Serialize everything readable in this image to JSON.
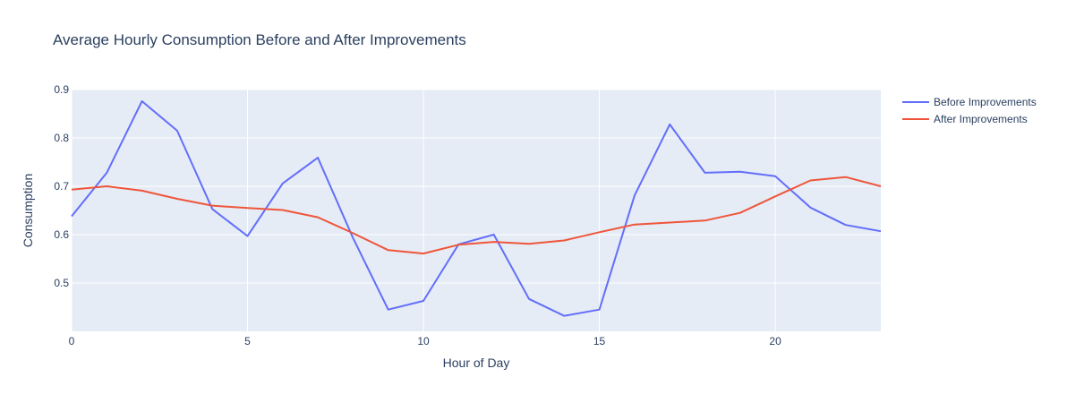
{
  "chart_data": {
    "type": "line",
    "title": "Average Hourly Consumption Before and After Improvements",
    "xlabel": "Hour of Day",
    "ylabel": "Consumption",
    "xlim": [
      0,
      23
    ],
    "ylim": [
      0.4,
      0.9
    ],
    "x_ticks": [
      0,
      5,
      10,
      15,
      20
    ],
    "x_tick_labels": [
      "0",
      "5",
      "10",
      "15",
      "20"
    ],
    "y_ticks": [
      0.5,
      0.6,
      0.7,
      0.8,
      0.9
    ],
    "y_tick_labels": [
      "0.5",
      "0.6",
      "0.7",
      "0.8",
      "0.9"
    ],
    "grid": true,
    "legend_position": "top-right",
    "x": [
      0,
      1,
      2,
      3,
      4,
      5,
      6,
      7,
      8,
      9,
      10,
      11,
      12,
      13,
      14,
      15,
      16,
      17,
      18,
      19,
      20,
      21,
      22,
      23
    ],
    "series": [
      {
        "name": "Before Improvements",
        "color": "#636efa",
        "values": [
          0.638,
          0.728,
          0.876,
          0.815,
          0.653,
          0.597,
          0.706,
          0.759,
          0.593,
          0.445,
          0.463,
          0.58,
          0.6,
          0.467,
          0.432,
          0.445,
          0.681,
          0.828,
          0.728,
          0.73,
          0.721,
          0.656,
          0.62,
          0.607
        ]
      },
      {
        "name": "After Improvements",
        "color": "#ef553b",
        "values": [
          0.693,
          0.7,
          0.691,
          0.674,
          0.66,
          0.655,
          0.651,
          0.636,
          0.603,
          0.568,
          0.561,
          0.579,
          0.585,
          0.581,
          0.588,
          0.605,
          0.621,
          0.625,
          0.629,
          0.645,
          0.679,
          0.712,
          0.719,
          0.7
        ]
      }
    ],
    "colors": {
      "plot_bg": "#e5ecf6",
      "grid": "#ffffff",
      "text": "#2a3f5f"
    }
  }
}
